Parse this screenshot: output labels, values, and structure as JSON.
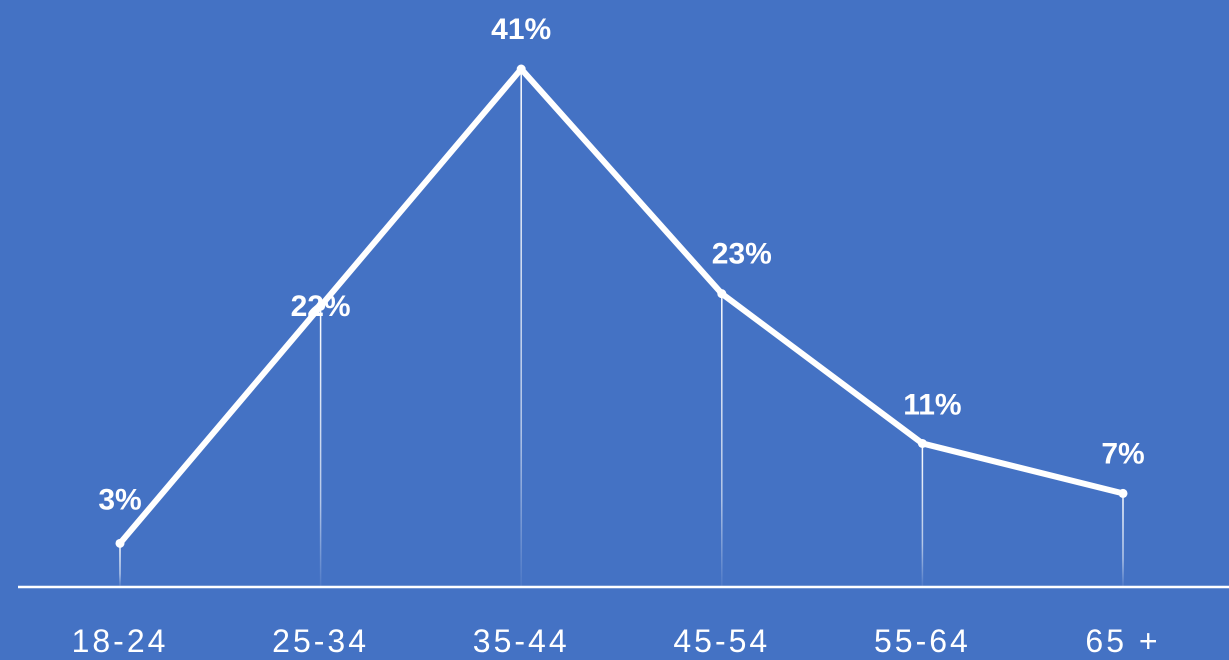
{
  "colors": {
    "background": "#4472C4",
    "foreground": "#FFFFFF"
  },
  "chart_data": {
    "type": "line",
    "categories": [
      "18-24",
      "25-34",
      "35-44",
      "45-54",
      "55-64",
      "65 +"
    ],
    "series": [
      {
        "values": [
          3,
          22,
          41,
          23,
          11,
          7
        ]
      }
    ],
    "data_labels": [
      "3%",
      "22%",
      "41%",
      "23%",
      "11%",
      "7%"
    ],
    "title": "",
    "xlabel": "",
    "ylabel": "",
    "ylim": [
      -0.5,
      41
    ],
    "grid": false,
    "drop_lines": true,
    "legend": "none"
  }
}
